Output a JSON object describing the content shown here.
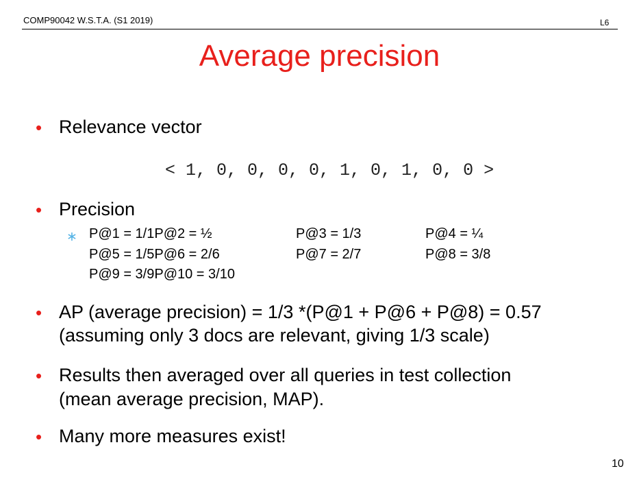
{
  "header": {
    "course": "COMP90042 W.S.T.A. (S1 2019)",
    "lecture": "L6"
  },
  "title": "Average precision",
  "bullets": {
    "relevance_label": "Relevance vector",
    "relevance_vector": "< 1, 0, 0, 0, 0, 1, 0, 1, 0, 0 >",
    "precision_label": "Precision",
    "precision_rows": [
      [
        "P@1 = 1/1P@2 = ½",
        "P@3 = 1/3",
        "P@4 = ¼"
      ],
      [
        "P@5 = 1/5P@6 = 2/6",
        "P@7 = 2/7",
        "P@8 = 3/8"
      ],
      [
        "P@9 = 3/9P@10 = 3/10"
      ]
    ],
    "ap_line1": "AP (average precision) = 1/3 *(P@1 + P@6 + P@8) = 0.57",
    "ap_line2": "(assuming only 3 docs are relevant, giving 1/3 scale)",
    "map_line1": "Results then averaged over all queries in test collection",
    "map_line2": "(mean average precision, MAP).",
    "more": "Many more measures exist!"
  },
  "bullet_glyph": "•",
  "subbullet_glyph": "∗",
  "page_number": "10",
  "colors": {
    "accent": "#e8201c",
    "subbullet": "#56b4e6"
  }
}
